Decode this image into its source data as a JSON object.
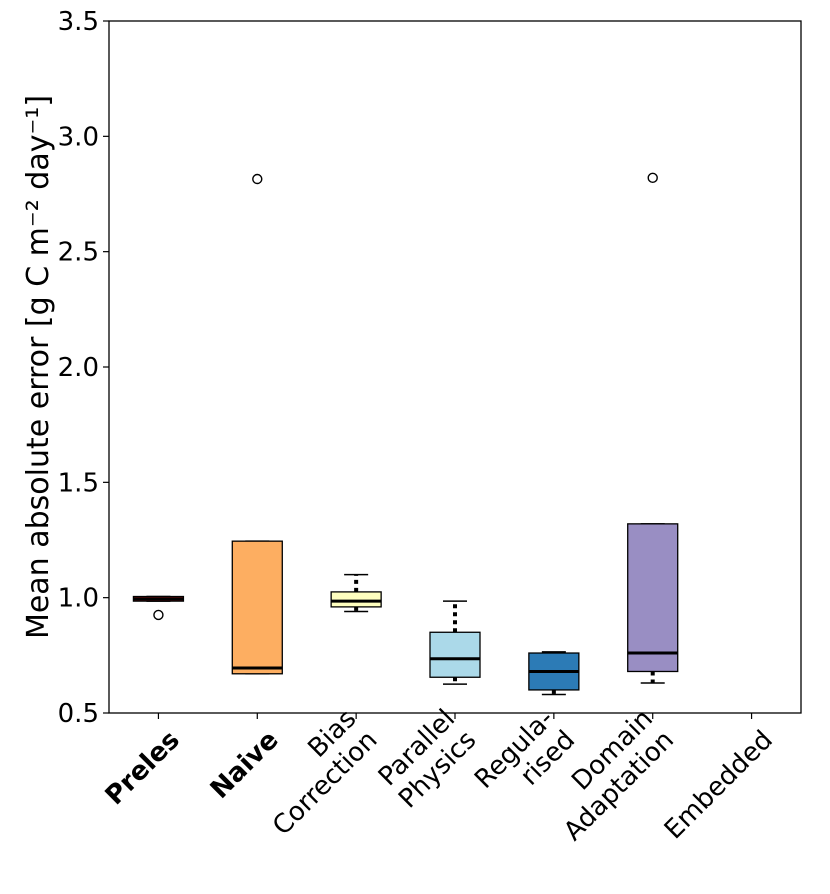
{
  "chart_data": {
    "type": "box",
    "title": "",
    "xlabel": "",
    "ylabel": "Mean absolute error [g C m⁻² day⁻¹]",
    "ylim": [
      0.5,
      3.5
    ],
    "yticks": [
      "0.5",
      "1.0",
      "1.5",
      "2.0",
      "2.5",
      "3.0",
      "3.5"
    ],
    "grid": false,
    "categories": [
      {
        "label": "Preles",
        "bold": true,
        "color": "#d7191c"
      },
      {
        "label": "Naive",
        "bold": true,
        "color": "#fdae61"
      },
      {
        "label": "Bias Correction",
        "bold": false,
        "color": "#ffffbf"
      },
      {
        "label": "Parallel Physics",
        "bold": false,
        "color": "#abd9e9"
      },
      {
        "label": "Regula- rised",
        "bold": false,
        "color": "#2c7bb6"
      },
      {
        "label": "Domain Adaptation",
        "bold": false,
        "color": "#998ec3"
      },
      {
        "label": "Embedded",
        "bold": false,
        "color": ""
      }
    ],
    "boxes": [
      {
        "category": "Preles",
        "whisker_low": 0.985,
        "q1": 0.985,
        "median": 0.995,
        "q3": 1.005,
        "whisker_high": 1.005,
        "outliers": [
          0.925
        ]
      },
      {
        "category": "Naive",
        "whisker_low": 0.67,
        "q1": 0.67,
        "median": 0.695,
        "q3": 1.245,
        "whisker_high": 1.245,
        "outliers": [
          2.815
        ]
      },
      {
        "category": "Bias Correction",
        "whisker_low": 0.94,
        "q1": 0.96,
        "median": 0.985,
        "q3": 1.025,
        "whisker_high": 1.1,
        "outliers": []
      },
      {
        "category": "Parallel Physics",
        "whisker_low": 0.625,
        "q1": 0.655,
        "median": 0.735,
        "q3": 0.85,
        "whisker_high": 0.985,
        "outliers": []
      },
      {
        "category": "Regula- rised",
        "whisker_low": 0.58,
        "q1": 0.6,
        "median": 0.68,
        "q3": 0.76,
        "whisker_high": 0.765,
        "outliers": []
      },
      {
        "category": "Domain Adaptation",
        "whisker_low": 0.63,
        "q1": 0.68,
        "median": 0.76,
        "q3": 1.32,
        "whisker_high": 1.32,
        "outliers": [
          2.82
        ]
      }
    ]
  }
}
